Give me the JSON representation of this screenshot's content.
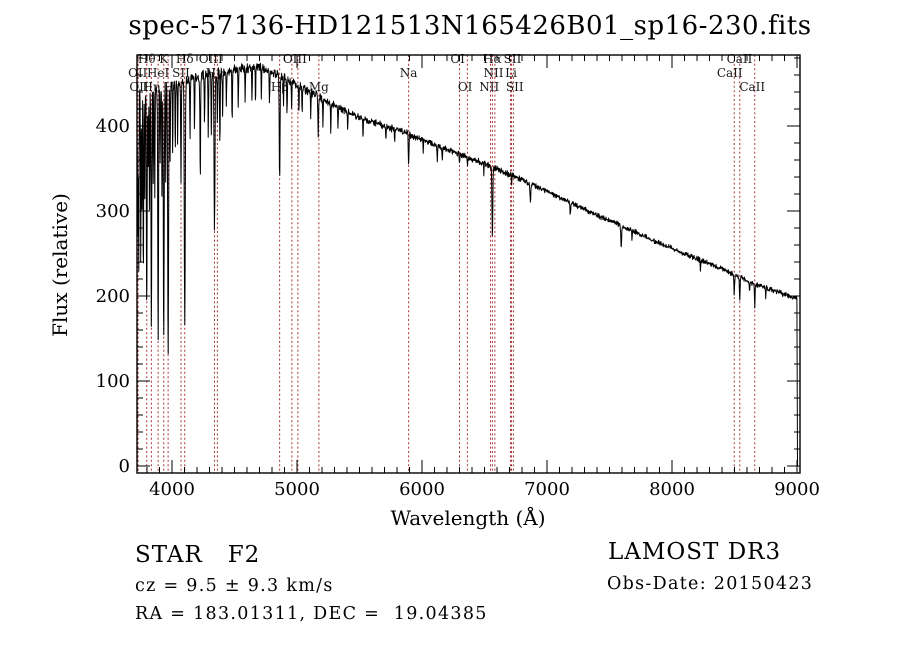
{
  "title": "spec-57136-HD121513N165426B01_sp16-230.fits",
  "axes": {
    "xlabel": "Wavelength (Å)",
    "ylabel": "Flux (relative)"
  },
  "annotations": {
    "class_line": "STAR   F2",
    "cz_line": "cz = 9.5 ± 9.3 km/s",
    "radec_line": "RA = 183.01311, DEC =  19.04385",
    "survey": "LAMOST DR3",
    "obs_date": "Obs-Date: 20150423"
  },
  "colors": {
    "spectrum": "#000000",
    "line_marker": "#a93439",
    "label_text": "#1a1a1a"
  },
  "chart_data": {
    "type": "line",
    "title": "spec-57136-HD121513N165426B01_sp16-230.fits",
    "xlabel": "Wavelength (Å)",
    "ylabel": "Flux (relative)",
    "xlim": [
      3720,
      9024
    ],
    "ylim": [
      0,
      484
    ],
    "x_ticks": [
      4000,
      5000,
      6000,
      7000,
      8000,
      9000
    ],
    "x_minor_step": 100,
    "y_ticks": [
      0,
      100,
      200,
      300,
      400
    ],
    "y_minor_step": 20,
    "grid": false,
    "continuum_anchors": [
      [
        3720,
        430
      ],
      [
        3740,
        436
      ],
      [
        3770,
        438
      ],
      [
        3800,
        440
      ],
      [
        3840,
        442
      ],
      [
        3880,
        444
      ],
      [
        3920,
        445
      ],
      [
        3960,
        446
      ],
      [
        4000,
        448
      ],
      [
        4060,
        450
      ],
      [
        4120,
        453
      ],
      [
        4200,
        458
      ],
      [
        4280,
        460
      ],
      [
        4360,
        462
      ],
      [
        4440,
        464
      ],
      [
        4520,
        466
      ],
      [
        4600,
        468
      ],
      [
        4680,
        470
      ],
      [
        4760,
        466
      ],
      [
        4840,
        461
      ],
      [
        4900,
        456
      ],
      [
        4960,
        451
      ],
      [
        5040,
        445
      ],
      [
        5120,
        439
      ],
      [
        5200,
        432
      ],
      [
        5280,
        426
      ],
      [
        5360,
        420
      ],
      [
        5440,
        414
      ],
      [
        5520,
        409
      ],
      [
        5600,
        405
      ],
      [
        5700,
        400
      ],
      [
        5800,
        396
      ],
      [
        5900,
        390
      ],
      [
        6000,
        384
      ],
      [
        6100,
        378
      ],
      [
        6200,
        372
      ],
      [
        6300,
        367
      ],
      [
        6400,
        361
      ],
      [
        6500,
        356
      ],
      [
        6600,
        349
      ],
      [
        6700,
        343
      ],
      [
        6800,
        337
      ],
      [
        6900,
        330
      ],
      [
        7000,
        323
      ],
      [
        7100,
        316
      ],
      [
        7200,
        309
      ],
      [
        7300,
        302
      ],
      [
        7400,
        295
      ],
      [
        7500,
        289
      ],
      [
        7600,
        282
      ],
      [
        7700,
        276
      ],
      [
        7800,
        269
      ],
      [
        7900,
        262
      ],
      [
        8000,
        256
      ],
      [
        8100,
        250
      ],
      [
        8200,
        244
      ],
      [
        8300,
        238
      ],
      [
        8400,
        232
      ],
      [
        8500,
        225
      ],
      [
        8600,
        218
      ],
      [
        8700,
        212
      ],
      [
        8800,
        207
      ],
      [
        8900,
        202
      ],
      [
        9000,
        196
      ]
    ],
    "absorption_dips": [
      [
        3726,
        185,
        2.5
      ],
      [
        3734,
        195,
        2.2
      ],
      [
        3750,
        205,
        2.2
      ],
      [
        3760,
        150,
        2
      ],
      [
        3771,
        215,
        2.4
      ],
      [
        3782,
        120,
        2
      ],
      [
        3798,
        255,
        2.8
      ],
      [
        3810,
        100,
        2
      ],
      [
        3820,
        140,
        2
      ],
      [
        3835,
        282,
        3
      ],
      [
        3850,
        105,
        2
      ],
      [
        3862,
        120,
        2
      ],
      [
        3889,
        296,
        3.2
      ],
      [
        3905,
        100,
        2
      ],
      [
        3920,
        130,
        2
      ],
      [
        3934,
        302,
        3.4
      ],
      [
        3950,
        125,
        2
      ],
      [
        3969,
        307,
        3.8
      ],
      [
        3985,
        90,
        2
      ],
      [
        4005,
        85,
        2
      ],
      [
        4026,
        80,
        2
      ],
      [
        4045,
        70,
        2
      ],
      [
        4072,
        115,
        2.4
      ],
      [
        4102,
        287,
        3.6
      ],
      [
        4144,
        70,
        2.2
      ],
      [
        4180,
        55,
        2
      ],
      [
        4226,
        125,
        2.6
      ],
      [
        4260,
        55,
        2
      ],
      [
        4290,
        70,
        2.2
      ],
      [
        4315,
        75,
        2.2
      ],
      [
        4340,
        182,
        3.6
      ],
      [
        4363,
        60,
        2
      ],
      [
        4383,
        85,
        2.4
      ],
      [
        4405,
        55,
        2
      ],
      [
        4435,
        45,
        2
      ],
      [
        4481,
        60,
        2.2
      ],
      [
        4530,
        45,
        2
      ],
      [
        4585,
        40,
        2
      ],
      [
        4640,
        40,
        2
      ],
      [
        4668,
        45,
        2
      ],
      [
        4715,
        35,
        2
      ],
      [
        4780,
        40,
        2
      ],
      [
        4861,
        122,
        3
      ],
      [
        4892,
        35,
        2
      ],
      [
        4920,
        38,
        2
      ],
      [
        4957,
        32,
        2
      ],
      [
        5015,
        36,
        2
      ],
      [
        5041,
        28,
        2
      ],
      [
        5110,
        28,
        2
      ],
      [
        5170,
        46,
        2.8
      ],
      [
        5207,
        30,
        2
      ],
      [
        5270,
        32,
        2.2
      ],
      [
        5328,
        26,
        2
      ],
      [
        5405,
        22,
        2
      ],
      [
        5528,
        22,
        2
      ],
      [
        5711,
        18,
        2
      ],
      [
        5782,
        15,
        2
      ],
      [
        5893,
        36,
        2.8
      ],
      [
        6010,
        14,
        2
      ],
      [
        6122,
        16,
        2
      ],
      [
        6162,
        14,
        2
      ],
      [
        6300,
        13,
        2
      ],
      [
        6363,
        11,
        2
      ],
      [
        6495,
        12,
        2
      ],
      [
        6563,
        83,
        3.2
      ],
      [
        6717,
        10,
        2
      ],
      [
        6867,
        22,
        3.5
      ],
      [
        7186,
        14,
        3
      ],
      [
        7594,
        26,
        3.5
      ],
      [
        7680,
        10,
        2
      ],
      [
        8227,
        14,
        2.2
      ],
      [
        8498,
        23,
        2.4
      ],
      [
        8542,
        29,
        2.4
      ],
      [
        8620,
        12,
        2
      ],
      [
        8662,
        27,
        2.4
      ],
      [
        8750,
        13,
        2
      ]
    ],
    "noise_regions": [
      [
        3800,
        17
      ],
      [
        4000,
        13
      ],
      [
        4500,
        8
      ],
      [
        5200,
        6.5
      ],
      [
        6000,
        5
      ],
      [
        7000,
        4.2
      ],
      [
        9100,
        3.5
      ]
    ],
    "noise_seed": 987654321,
    "sample_step": 2.5,
    "edge_drop_wavelength": 9000,
    "spectral_lines": [
      {
        "wavelength": 3726,
        "label": "OII",
        "row": 2
      },
      {
        "wavelength": 3729,
        "label": "OII",
        "row": 3,
        "label_wavelength": 3736
      },
      {
        "wavelength": 3798,
        "label": "Hθ",
        "row": 1
      },
      {
        "wavelength": 3835,
        "label": "Hη",
        "row": 3
      },
      {
        "wavelength": 3889,
        "label": "HeI",
        "row": 2
      },
      {
        "wavelength": 3934,
        "label": "K",
        "row": 1
      },
      {
        "wavelength": 3969,
        "label": "H",
        "row": 3,
        "label_wavelength": 3978
      },
      {
        "wavelength": 4072,
        "label": "SII",
        "row": 2
      },
      {
        "wavelength": 4102,
        "label": "Hδ",
        "row": 1
      },
      {
        "wavelength": 4340,
        "label": "Hγ",
        "row": 2
      },
      {
        "wavelength": 4363,
        "label": "OIII",
        "row": 1,
        "label_wavelength": 4310
      },
      {
        "wavelength": 4861,
        "label": "Hβ",
        "row": 3
      },
      {
        "wavelength": 4959,
        "label": "OIII",
        "row": 1,
        "label_wavelength": 4983
      },
      {
        "wavelength": 5007,
        "label": "",
        "row": 0
      },
      {
        "wavelength": 5175,
        "label": "Mg",
        "row": 3
      },
      {
        "wavelength": 5893,
        "label": "Na",
        "row": 2
      },
      {
        "wavelength": 6300,
        "label": "OI",
        "row": 1,
        "label_wavelength": 6285
      },
      {
        "wavelength": 6363,
        "label": "OI",
        "row": 3,
        "label_wavelength": 6345
      },
      {
        "wavelength": 6548,
        "label": "NII",
        "row": 3,
        "label_wavelength": 6538
      },
      {
        "wavelength": 6563,
        "label": "Hα",
        "row": 1
      },
      {
        "wavelength": 6583,
        "label": "NII",
        "row": 2,
        "label_wavelength": 6572
      },
      {
        "wavelength": 6708,
        "label": "Li",
        "row": 2,
        "label_wavelength": 6712
      },
      {
        "wavelength": 6716,
        "label": "SII",
        "row": 1,
        "label_wavelength": 6724
      },
      {
        "wavelength": 6731,
        "label": "SII",
        "row": 3,
        "label_wavelength": 6742
      },
      {
        "wavelength": 8498,
        "label": "CaII",
        "row": 2,
        "label_wavelength": 8462
      },
      {
        "wavelength": 8542,
        "label": "CaII",
        "row": 1,
        "label_wavelength": 8540
      },
      {
        "wavelength": 8662,
        "label": "CaII",
        "row": 3,
        "label_wavelength": 8642
      }
    ]
  }
}
